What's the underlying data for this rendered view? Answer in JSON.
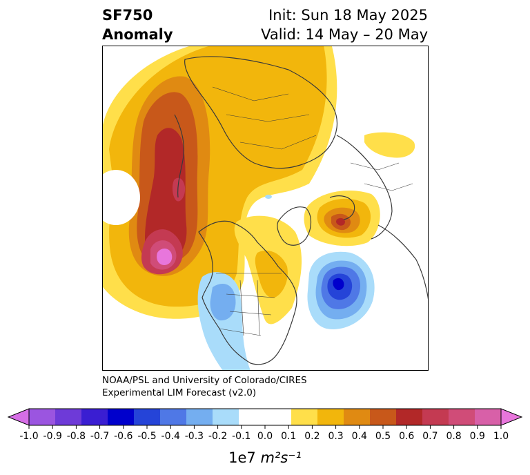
{
  "title": {
    "left_line1": "SF750",
    "left_line2": "Anomaly",
    "right_line1": "Init: Sun 18 May 2025",
    "right_line2": "Valid: 14 May – 20 May"
  },
  "credit": {
    "line1": "NOAA/PSL and University of Colorado/CIRES",
    "line2": "Experimental LIM Forecast (v2.0)"
  },
  "colorbar": {
    "ticks": [
      "-1.0",
      "-0.9",
      "-0.8",
      "-0.7",
      "-0.6",
      "-0.5",
      "-0.4",
      "-0.3",
      "-0.2",
      "-0.1",
      "0.0",
      "0.1",
      "0.2",
      "0.3",
      "0.4",
      "0.5",
      "0.6",
      "0.7",
      "0.8",
      "0.9",
      "1.0"
    ],
    "colors": [
      "#9b55e0",
      "#6e3ad8",
      "#3a1ed2",
      "#0000cc",
      "#2544d8",
      "#4f78e6",
      "#74aef0",
      "#a9dcfa",
      "#ffffff",
      "#ffffff",
      "#ffdf4a",
      "#f2b60c",
      "#e08a12",
      "#c8581a",
      "#b22828",
      "#c43a52",
      "#d04c78",
      "#d860a8"
    ],
    "extend_low_color": "#d66ee6",
    "extend_high_color": "#e876dc",
    "unit_prefix": "1e7",
    "unit": "m²s⁻¹"
  }
}
